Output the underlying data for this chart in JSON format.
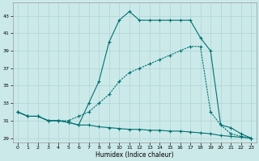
{
  "xlabel": "Humidex (Indice chaleur)",
  "bg_color": "#cce9e9",
  "grid_color": "#aad4d4",
  "line_color": "#007070",
  "xlim": [
    -0.5,
    23.5
  ],
  "ylim": [
    28.5,
    44.5
  ],
  "xticks": [
    0,
    1,
    2,
    3,
    4,
    5,
    6,
    7,
    8,
    9,
    10,
    11,
    12,
    13,
    14,
    15,
    16,
    17,
    18,
    19,
    20,
    21,
    22,
    23
  ],
  "yticks": [
    29,
    31,
    33,
    35,
    37,
    39,
    41,
    43
  ],
  "series_flat_x": [
    0,
    1,
    2,
    3,
    4,
    5,
    6,
    7,
    8,
    9,
    10,
    11,
    12,
    13,
    14,
    15,
    16,
    17,
    18,
    19,
    20,
    21,
    22,
    23
  ],
  "series_flat_y": [
    32.0,
    31.5,
    31.5,
    31.0,
    31.0,
    30.8,
    30.5,
    30.5,
    30.3,
    30.2,
    30.1,
    30.0,
    30.0,
    29.9,
    29.9,
    29.8,
    29.8,
    29.7,
    29.6,
    29.5,
    29.3,
    29.2,
    29.1,
    29.0
  ],
  "series_diag_x": [
    0,
    1,
    2,
    3,
    4,
    5,
    6,
    7,
    8,
    9,
    10,
    11,
    12,
    13,
    14,
    15,
    16,
    17,
    18,
    19,
    20,
    21,
    22,
    23
  ],
  "series_diag_y": [
    32.0,
    31.5,
    31.5,
    31.0,
    31.0,
    31.0,
    31.5,
    32.0,
    33.0,
    34.0,
    35.5,
    36.5,
    37.0,
    37.5,
    38.0,
    38.5,
    39.0,
    39.5,
    39.5,
    32.0,
    30.5,
    29.5,
    29.2,
    29.0
  ],
  "series_peak_x": [
    0,
    1,
    2,
    3,
    4,
    5,
    6,
    7,
    8,
    9,
    10,
    11,
    12,
    13,
    14,
    15,
    16,
    17,
    18,
    19,
    20,
    21,
    22,
    23
  ],
  "series_peak_y": [
    32.0,
    31.5,
    31.5,
    31.0,
    31.0,
    30.8,
    30.5,
    33.0,
    35.5,
    40.0,
    42.5,
    43.5,
    42.5,
    42.5,
    42.5,
    42.5,
    42.5,
    42.5,
    40.5,
    39.0,
    30.5,
    30.2,
    29.5,
    29.0
  ]
}
